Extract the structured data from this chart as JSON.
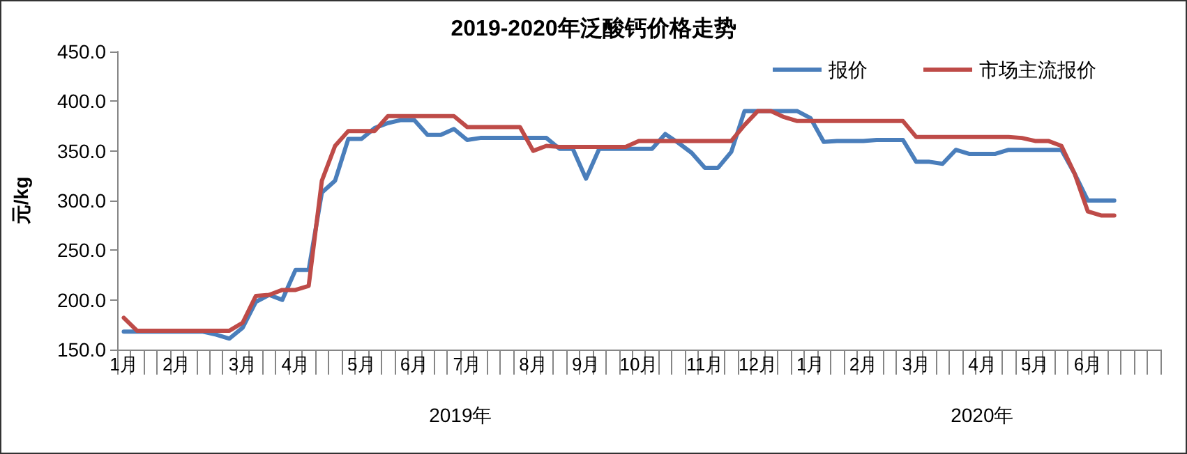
{
  "chart_data": {
    "type": "line",
    "title": "2019-2020年泛酸钙价格走势",
    "ylabel": "元/kg",
    "categories": [
      "1月",
      null,
      null,
      null,
      "2月",
      null,
      null,
      null,
      null,
      "3月",
      null,
      null,
      null,
      "4月",
      null,
      null,
      null,
      null,
      "5月",
      null,
      null,
      null,
      "6月",
      null,
      null,
      null,
      "7月",
      null,
      null,
      null,
      null,
      "8月",
      null,
      null,
      null,
      "9月",
      null,
      null,
      null,
      "10月",
      null,
      null,
      null,
      null,
      "11月",
      null,
      null,
      null,
      "12月",
      null,
      null,
      null,
      "1月",
      null,
      null,
      null,
      "2月",
      null,
      null,
      null,
      "3月",
      null,
      null,
      null,
      null,
      "4月",
      null,
      null,
      null,
      "5月",
      null,
      null,
      null,
      "6月",
      null,
      null,
      null,
      null,
      null
    ],
    "series": [
      {
        "name": "报价",
        "color": "#4a7ebb",
        "values": [
          168,
          168,
          168,
          168,
          168,
          168,
          168,
          165,
          161,
          172,
          198,
          205,
          200,
          230,
          230,
          308,
          320,
          362,
          362,
          373,
          378,
          381,
          381,
          366,
          366,
          372,
          361,
          363,
          363,
          363,
          363,
          363,
          363,
          352,
          352,
          322,
          352,
          352,
          352,
          352,
          352,
          367,
          358,
          348,
          333,
          333,
          349,
          390,
          390,
          390,
          390,
          390,
          383,
          359,
          360,
          360,
          360,
          361,
          361,
          361,
          339,
          339,
          337,
          351,
          347,
          347,
          347,
          351,
          351,
          351,
          351,
          351,
          327,
          300,
          300,
          300,
          null,
          null,
          null
        ]
      },
      {
        "name": "市场主流报价",
        "color": "#be4b48",
        "values": [
          182,
          169,
          169,
          169,
          169,
          169,
          169,
          169,
          169,
          177,
          204,
          205,
          210,
          210,
          214,
          320,
          355,
          370,
          370,
          370,
          385,
          385,
          385,
          385,
          385,
          385,
          374,
          374,
          374,
          374,
          374,
          350,
          355,
          354,
          354,
          354,
          354,
          354,
          354,
          360,
          360,
          360,
          360,
          360,
          360,
          360,
          360,
          376,
          390,
          390,
          384,
          380,
          380,
          380,
          380,
          380,
          380,
          380,
          380,
          380,
          364,
          364,
          364,
          364,
          364,
          364,
          364,
          364,
          363,
          360,
          360,
          355,
          327,
          289,
          285,
          285,
          null,
          null,
          null
        ]
      }
    ],
    "ylim": [
      150,
      450
    ],
    "yticks": [
      {
        "value": 150,
        "label": "150.0"
      },
      {
        "value": 200,
        "label": "200.0"
      },
      {
        "value": 250,
        "label": "250.0"
      },
      {
        "value": 300,
        "label": "300.0"
      },
      {
        "value": 350,
        "label": "350.0"
      },
      {
        "value": 400,
        "label": "400.0"
      },
      {
        "value": 450,
        "label": "450.0"
      }
    ],
    "annotations": [
      "2019年",
      "2020年"
    ],
    "legend": "top right",
    "grid": false,
    "marker": "none",
    "line_style": "solid"
  }
}
